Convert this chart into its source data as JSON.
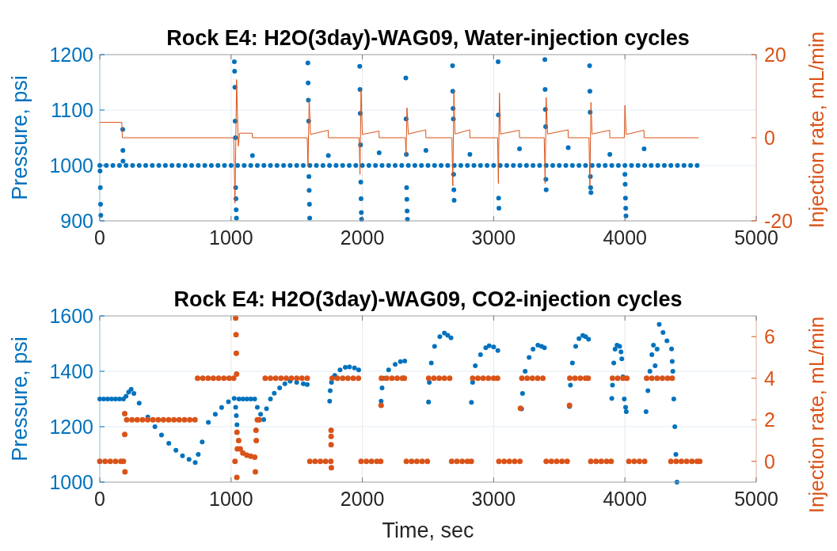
{
  "chart_data": [
    {
      "type": "scatter",
      "title": "Rock E4: H2O(3day)-WAG09, Water-injection cycles",
      "ylabel": "Pressure, psi",
      "y2label": "Injection rate, mL/min",
      "xlim": [
        0,
        5000
      ],
      "xticks": [
        0,
        1000,
        2000,
        3000,
        4000,
        5000
      ],
      "ylim": [
        900,
        1200
      ],
      "yticks": [
        900,
        1000,
        1100,
        1200
      ],
      "y2lim": [
        -20,
        20
      ],
      "y2ticks": [
        -20,
        0,
        20
      ],
      "grid": true,
      "marker": "circle",
      "series": [
        {
          "color": "#0072bd",
          "x": [
            0,
            50,
            100,
            150,
            200,
            250,
            300,
            350,
            400,
            450,
            500,
            550,
            600,
            650,
            700,
            750,
            800,
            850,
            900,
            950,
            1000,
            1050,
            1100,
            1150,
            1200,
            1250,
            1300,
            1350,
            1400,
            1450,
            1500,
            1550,
            1600,
            1650,
            1700,
            1750,
            1800,
            1850,
            1900,
            1950,
            2000,
            2050,
            2100,
            2150,
            2200,
            2250,
            2300,
            2350,
            2400,
            2450,
            2500,
            2550,
            2600,
            2650,
            2700,
            2750,
            2800,
            2850,
            2900,
            2950,
            3000,
            3050,
            3100,
            3150,
            3200,
            3250,
            3300,
            3350,
            3400,
            3450,
            3500,
            3550,
            3600,
            3650,
            3700,
            3750,
            3800,
            3850,
            3900,
            3950,
            4000,
            4050,
            4100,
            4150,
            4200,
            4250,
            4300,
            4350,
            4400,
            4450,
            4500,
            4550,
            2,
            4,
            6,
            8,
            175,
            176,
            177,
            1025,
            1027,
            1029,
            1031,
            1033,
            1035,
            1037,
            1039,
            1041,
            1163,
            1585,
            1587,
            1589,
            1591,
            1593,
            1595,
            1597,
            1599,
            1741,
            1980,
            1982,
            1984,
            1986,
            1988,
            1990,
            1992,
            1994,
            2128,
            2331,
            2333,
            2335,
            2337,
            2339,
            2341,
            2343,
            2484,
            2687,
            2689,
            2691,
            2693,
            2695,
            2697,
            2699,
            2819,
            3034,
            3036,
            3038,
            3040,
            3197,
            3390,
            3392,
            3394,
            3396,
            3398,
            3400,
            3568,
            3731,
            3733,
            3735,
            3737,
            3739,
            3741,
            3885,
            4000,
            4002,
            4004,
            4006,
            4008,
            4146
          ],
          "values": [
            1000,
            1000,
            1000,
            1000,
            1000,
            1000,
            1000,
            1000,
            1000,
            1000,
            1000,
            1000,
            1000,
            1000,
            1000,
            1000,
            1000,
            1000,
            1000,
            1000,
            1000,
            1000,
            1000,
            1000,
            1000,
            1000,
            1000,
            1000,
            1000,
            1000,
            1000,
            1000,
            1000,
            1000,
            1000,
            1000,
            1000,
            1000,
            1000,
            1000,
            1000,
            1000,
            1000,
            1000,
            1000,
            1000,
            1000,
            1000,
            1000,
            1000,
            1000,
            1000,
            1000,
            1000,
            1000,
            1000,
            1000,
            1000,
            1000,
            1000,
            1000,
            1000,
            1000,
            1000,
            1000,
            1000,
            1000,
            1000,
            1000,
            1000,
            1000,
            1000,
            1000,
            1000,
            1000,
            1000,
            1000,
            1000,
            1000,
            1000,
            1000,
            1000,
            1000,
            1000,
            1000,
            1000,
            1000,
            1000,
            1000,
            1000,
            1000,
            1000,
            990,
            960,
            930,
            910,
            1065,
            1027,
            1008,
            1187,
            1170,
            1141,
            1080,
            1050,
            960,
            940,
            920,
            905,
            1018,
            1185,
            1149,
            1118,
            1080,
            980,
            955,
            930,
            905,
            1018,
            1179,
            1137,
            1094,
            1037,
            970,
            940,
            915,
            903,
            1023,
            1158,
            1084,
            1020,
            960,
            939,
            918,
            903,
            1027,
            1180,
            1134,
            1103,
            1084,
            984,
            956,
            937,
            1020,
            1187,
            1091,
            941,
            923,
            1030,
            1191,
            1137,
            1101,
            1070,
            975,
            956,
            1032,
            1180,
            1134,
            1096,
            980,
            960,
            951,
            1020,
            984,
            966,
            941,
            923,
            909,
            1030
          ]
        },
        {
          "type": "line",
          "axis": "y2",
          "marker": "none",
          "color": "#d95319",
          "x": [
            0,
            168,
            172,
            1020,
            1030,
            1042,
            1055,
            1065,
            1160,
            1163,
            1580,
            1586,
            1595,
            1605,
            1740,
            1741,
            1975,
            1982,
            1990,
            2000,
            2127,
            2128,
            2327,
            2333,
            2340,
            2350,
            2483,
            2484,
            2682,
            2689,
            2697,
            2706,
            2818,
            2819,
            3030,
            3036,
            3044,
            3052,
            3196,
            3197,
            3385,
            3392,
            3400,
            3410,
            3567,
            3568,
            3726,
            3733,
            3741,
            3750,
            3884,
            3885,
            3995,
            4000,
            4010,
            4145,
            4146,
            4562
          ],
          "values": [
            3.7,
            3.7,
            0,
            0,
            -15.7,
            14,
            -2,
            1.1,
            1.1,
            0,
            0,
            -6.9,
            9.5,
            0.8,
            1.8,
            0,
            0,
            -8.8,
            11.6,
            0.8,
            1.6,
            0,
            0,
            -4.3,
            7.2,
            0.9,
            1.9,
            0,
            0,
            -11.6,
            11.4,
            0.9,
            1.9,
            0,
            0,
            -11,
            10.8,
            0.9,
            1.8,
            0,
            0,
            -11,
            9.7,
            0.9,
            1.9,
            0,
            0,
            -11.6,
            8.5,
            0.9,
            1.8,
            0,
            0,
            7.8,
            0.8,
            1.8,
            0,
            0
          ]
        }
      ]
    },
    {
      "type": "scatter",
      "title": "Rock E4: H2O(3day)-WAG09, CO2-injection cycles",
      "xlabel": "Time, sec",
      "ylabel": "Pressure, psi",
      "y2label": "Injection rate, mL/min",
      "xlim": [
        0,
        5000
      ],
      "xticks": [
        0,
        1000,
        2000,
        3000,
        4000,
        5000
      ],
      "ylim": [
        1000,
        1600
      ],
      "yticks": [
        1000,
        1200,
        1400,
        1600
      ],
      "y2lim": [
        -1,
        7
      ],
      "y2ticks": [
        0,
        2,
        4,
        6
      ],
      "grid": true,
      "marker": "circle",
      "series": [
        {
          "color": "#0072bd",
          "x": [
            0,
            30,
            60,
            90,
            120,
            150,
            180,
            200,
            220,
            239,
            260,
            300,
            366,
            420,
            470,
            526,
            580,
            630,
            680,
            727,
            750,
            780,
            827,
            880,
            928,
            980,
            1024,
            1035,
            1040,
            1045,
            1060,
            1090,
            1120,
            1150,
            1180,
            1200,
            1225,
            1249,
            1270,
            1300,
            1329,
            1370,
            1410,
            1450,
            1500,
            1550,
            1580,
            1751,
            1755,
            1765,
            1790,
            1830,
            1870,
            1902,
            1940,
            1972,
            2143,
            2150,
            2165,
            2200,
            2250,
            2290,
            2323,
            2504,
            2510,
            2525,
            2550,
            2590,
            2625,
            2650,
            2675,
            2831,
            2840,
            2860,
            2900,
            2940,
            2966,
            3000,
            3032,
            3213,
            3220,
            3240,
            3270,
            3300,
            3337,
            3365,
            3387,
            3578,
            3585,
            3600,
            3625,
            3650,
            3679,
            3700,
            3723,
            3900,
            3905,
            3915,
            3925,
            3940,
            3960,
            3970,
            3976,
            3985,
            3995,
            4005,
            4010,
            4161,
            4175,
            4190,
            4205,
            4217,
            4230,
            4245,
            4261,
            4290,
            4320,
            4355,
            4360,
            4365,
            4372,
            4380,
            4388,
            4396
          ],
          "values": [
            1300,
            1300,
            1300,
            1300,
            1300,
            1300,
            1300,
            1310,
            1325,
            1335,
            1320,
            1285,
            1235,
            1200,
            1170,
            1140,
            1115,
            1095,
            1082,
            1071,
            1100,
            1145,
            1216,
            1245,
            1269,
            1290,
            1302,
            1270,
            1240,
            1207,
            1300,
            1300,
            1300,
            1300,
            1300,
            1270,
            1245,
            1226,
            1265,
            1300,
            1321,
            1340,
            1355,
            1364,
            1360,
            1355,
            1352,
            1292,
            1330,
            1360,
            1385,
            1405,
            1414,
            1416,
            1412,
            1405,
            1292,
            1340,
            1375,
            1405,
            1425,
            1435,
            1437,
            1289,
            1360,
            1430,
            1490,
            1525,
            1538,
            1530,
            1521,
            1288,
            1360,
            1420,
            1460,
            1485,
            1492,
            1488,
            1475,
            1264,
            1320,
            1400,
            1450,
            1480,
            1494,
            1490,
            1485,
            1273,
            1350,
            1430,
            1490,
            1518,
            1529,
            1525,
            1516,
            1302,
            1350,
            1430,
            1480,
            1494,
            1490,
            1470,
            1445,
            1380,
            1300,
            1270,
            1254,
            1254,
            1330,
            1400,
            1460,
            1494,
            1420,
            1480,
            1569,
            1540,
            1510,
            1481,
            1436,
            1400,
            1300,
            1200,
            1100,
            1000
          ]
        },
        {
          "axis": "y2",
          "color": "#d95319",
          "x": [
            0,
            40,
            80,
            120,
            160,
            180,
            190,
            190,
            192,
            205,
            245,
            285,
            325,
            365,
            405,
            445,
            485,
            525,
            565,
            605,
            645,
            685,
            725,
            745,
            785,
            825,
            865,
            905,
            945,
            985,
            1020,
            1030,
            1035,
            1038,
            1040,
            1042,
            1044,
            1045,
            1048,
            1058,
            1070,
            1090,
            1120,
            1150,
            1180,
            1185,
            1190,
            1192,
            1200,
            1215,
            1260,
            1300,
            1340,
            1380,
            1420,
            1460,
            1500,
            1540,
            1580,
            1600,
            1640,
            1680,
            1720,
            1760,
            1762,
            1762,
            1762,
            1764,
            1770,
            1810,
            1850,
            1890,
            1930,
            1970,
            1990,
            2030,
            2070,
            2110,
            2140,
            2143,
            2145,
            2185,
            2225,
            2265,
            2305,
            2320,
            2335,
            2375,
            2415,
            2455,
            2495,
            2505,
            2545,
            2585,
            2625,
            2665,
            2680,
            2720,
            2760,
            2800,
            2830,
            2840,
            2880,
            2920,
            2960,
            3000,
            3030,
            3040,
            3080,
            3120,
            3160,
            3200,
            3204,
            3215,
            3255,
            3295,
            3335,
            3375,
            3400,
            3440,
            3480,
            3520,
            3560,
            3578,
            3580,
            3620,
            3660,
            3700,
            3720,
            3740,
            3780,
            3820,
            3860,
            3895,
            3905,
            3945,
            3985,
            4015,
            4030,
            4070,
            4110,
            4150,
            4165,
            4205,
            4245,
            4285,
            4325,
            4360,
            4350,
            4390,
            4430,
            4470,
            4510,
            4550,
            4570
          ],
          "values": [
            0,
            0,
            0,
            0,
            0,
            0,
            2.3,
            1.3,
            -0.5,
            2,
            2,
            2,
            2,
            2,
            2,
            2,
            2,
            2,
            2,
            2,
            2,
            2,
            2,
            4,
            4,
            4,
            4,
            4,
            4,
            4,
            4,
            0,
            6.9,
            6.1,
            5.2,
            4.2,
            -0.77,
            1.4,
            0.6,
            1,
            0.6,
            0.4,
            0.3,
            0.25,
            0.2,
            -0.5,
            1.5,
            1,
            2,
            2,
            4,
            4,
            4,
            4,
            4,
            4,
            4,
            4,
            4,
            0,
            0,
            0,
            0,
            0,
            1.2,
            1.5,
            0.8,
            -0.3,
            4,
            4,
            4,
            4,
            4,
            4,
            0,
            0,
            0,
            0,
            0,
            2.7,
            4,
            4,
            4,
            4,
            4,
            4,
            0,
            0,
            0,
            0,
            0,
            4,
            4,
            4,
            4,
            4,
            0,
            0,
            0,
            0,
            0,
            4,
            4,
            4,
            4,
            4,
            4,
            0,
            0,
            0,
            0,
            0,
            2.55,
            4,
            4,
            4,
            4,
            4,
            0,
            0,
            0,
            0,
            0,
            2.7,
            4,
            4,
            4,
            4,
            4,
            0,
            0,
            0,
            0,
            0,
            4,
            4,
            4,
            4,
            0,
            0,
            0,
            0,
            4,
            4,
            4,
            4,
            4,
            4,
            0,
            0,
            0,
            0,
            0,
            0,
            0
          ]
        }
      ]
    }
  ]
}
